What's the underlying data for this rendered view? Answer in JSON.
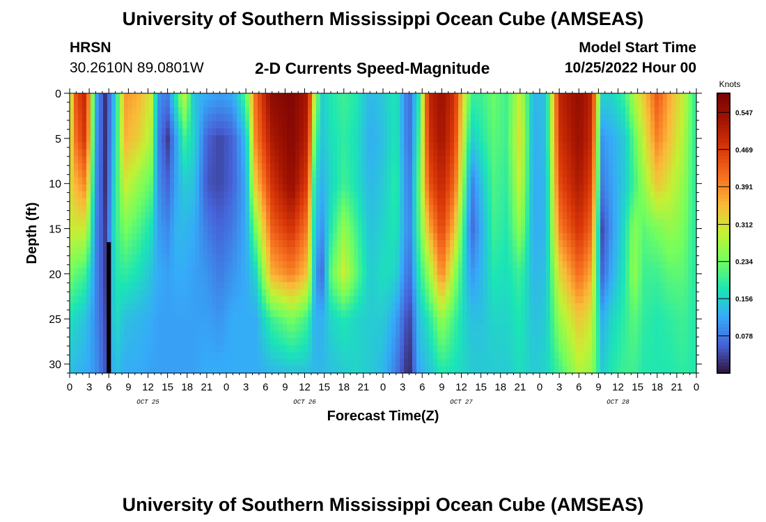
{
  "header": {
    "title": "University of Southern Mississippi Ocean Cube (AMSEAS)",
    "station": "HRSN",
    "coords": "30.2610N  89.0801W",
    "product": "2-D Currents Speed-Magnitude",
    "model_label": "Model Start Time",
    "model_time": "10/25/2022 Hour 00"
  },
  "footer_title": "University of Southern Mississippi Ocean Cube (AMSEAS)",
  "chart_data": {
    "type": "heatmap",
    "title": "2-D Currents Speed-Magnitude",
    "xlabel": "Forecast Time(Z)",
    "ylabel": "Depth (ft)",
    "x_hours_range": [
      0,
      96
    ],
    "x_tick_labels": [
      "0",
      "3",
      "6",
      "9",
      "12",
      "15",
      "18",
      "21",
      "0",
      "3",
      "6",
      "9",
      "12",
      "15",
      "18",
      "21",
      "0",
      "3",
      "6",
      "9",
      "12",
      "15",
      "18",
      "21",
      "0",
      "3",
      "6",
      "9",
      "12",
      "15",
      "18",
      "21",
      "0"
    ],
    "date_labels": [
      {
        "label": "OCT 25",
        "hour": 12
      },
      {
        "label": "OCT 26",
        "hour": 36
      },
      {
        "label": "OCT 27",
        "hour": 60
      },
      {
        "label": "OCT 28",
        "hour": 84
      }
    ],
    "y_range_ft": [
      0,
      31
    ],
    "y_ticks": [
      0,
      5,
      10,
      15,
      20,
      25,
      30
    ],
    "colorbar": {
      "unit": "Knots",
      "range": [
        0,
        0.587
      ],
      "ticks": [
        "0.547",
        "0.469",
        "0.391",
        "0.312",
        "0.234",
        "0.156",
        "0.078"
      ],
      "tick_values": [
        0.547,
        0.469,
        0.391,
        0.312,
        0.234,
        0.156,
        0.078
      ]
    },
    "profile_anchor_depths_ft": [
      0,
      5,
      10,
      15,
      20,
      25,
      31
    ],
    "time_profiles": [
      {
        "hour": 0,
        "speeds": [
          0.26,
          0.29,
          0.31,
          0.3,
          0.24,
          0.17,
          0.14
        ]
      },
      {
        "hour": 1,
        "speeds": [
          0.45,
          0.42,
          0.36,
          0.3,
          0.22,
          0.16,
          0.13
        ]
      },
      {
        "hour": 2.5,
        "speeds": [
          0.5,
          0.48,
          0.4,
          0.3,
          0.2,
          0.14,
          0.12
        ]
      },
      {
        "hour": 4,
        "speeds": [
          0.12,
          0.11,
          0.1,
          0.09,
          0.09,
          0.09,
          0.1
        ]
      },
      {
        "hour": 5.5,
        "speeds": [
          0.02,
          0.02,
          0.02,
          0.03,
          0.03,
          0.04,
          0.05
        ]
      },
      {
        "hour": 7,
        "speeds": [
          0.15,
          0.16,
          0.18,
          0.19,
          0.18,
          0.17,
          0.14
        ]
      },
      {
        "hour": 8.5,
        "speeds": [
          0.38,
          0.36,
          0.3,
          0.24,
          0.19,
          0.14,
          0.12
        ]
      },
      {
        "hour": 10.5,
        "speeds": [
          0.36,
          0.33,
          0.26,
          0.21,
          0.17,
          0.13,
          0.12
        ]
      },
      {
        "hour": 12.5,
        "speeds": [
          0.3,
          0.27,
          0.22,
          0.17,
          0.14,
          0.12,
          0.11
        ]
      },
      {
        "hour": 13.5,
        "speeds": [
          0.1,
          0.09,
          0.1,
          0.11,
          0.12,
          0.11,
          0.11
        ]
      },
      {
        "hour": 15,
        "speeds": [
          0.08,
          0.03,
          0.06,
          0.09,
          0.11,
          0.11,
          0.11
        ]
      },
      {
        "hour": 16.5,
        "speeds": [
          0.2,
          0.12,
          0.12,
          0.13,
          0.12,
          0.11,
          0.11
        ]
      },
      {
        "hour": 17.5,
        "speeds": [
          0.3,
          0.2,
          0.15,
          0.13,
          0.12,
          0.11,
          0.11
        ]
      },
      {
        "hour": 19,
        "speeds": [
          0.14,
          0.16,
          0.14,
          0.12,
          0.11,
          0.11,
          0.11
        ]
      },
      {
        "hour": 21,
        "speeds": [
          0.12,
          0.06,
          0.05,
          0.08,
          0.1,
          0.11,
          0.12
        ]
      },
      {
        "hour": 23,
        "speeds": [
          0.11,
          0.04,
          0.04,
          0.06,
          0.08,
          0.1,
          0.12
        ]
      },
      {
        "hour": 25,
        "speeds": [
          0.12,
          0.06,
          0.06,
          0.08,
          0.1,
          0.12,
          0.12
        ]
      },
      {
        "hour": 27,
        "speeds": [
          0.22,
          0.14,
          0.12,
          0.12,
          0.12,
          0.12,
          0.12
        ]
      },
      {
        "hour": 28.5,
        "speeds": [
          0.42,
          0.4,
          0.34,
          0.24,
          0.16,
          0.12,
          0.12
        ]
      },
      {
        "hour": 31,
        "speeds": [
          0.56,
          0.52,
          0.48,
          0.43,
          0.36,
          0.2,
          0.13
        ]
      },
      {
        "hour": 34,
        "speeds": [
          0.58,
          0.57,
          0.55,
          0.48,
          0.4,
          0.24,
          0.14
        ]
      },
      {
        "hour": 36.5,
        "speeds": [
          0.52,
          0.5,
          0.46,
          0.4,
          0.34,
          0.2,
          0.14
        ]
      },
      {
        "hour": 37.5,
        "speeds": [
          0.3,
          0.24,
          0.18,
          0.16,
          0.14,
          0.13,
          0.13
        ]
      },
      {
        "hour": 38.5,
        "speeds": [
          0.15,
          0.14,
          0.12,
          0.09,
          0.05,
          0.12,
          0.13
        ]
      },
      {
        "hour": 40,
        "speeds": [
          0.18,
          0.17,
          0.16,
          0.18,
          0.22,
          0.16,
          0.14
        ]
      },
      {
        "hour": 42,
        "speeds": [
          0.2,
          0.19,
          0.2,
          0.26,
          0.3,
          0.18,
          0.15
        ]
      },
      {
        "hour": 44,
        "speeds": [
          0.18,
          0.17,
          0.17,
          0.2,
          0.22,
          0.16,
          0.16
        ]
      },
      {
        "hour": 46,
        "speeds": [
          0.13,
          0.12,
          0.13,
          0.14,
          0.15,
          0.15,
          0.15
        ]
      },
      {
        "hour": 48,
        "speeds": [
          0.15,
          0.14,
          0.15,
          0.16,
          0.17,
          0.15,
          0.13
        ]
      },
      {
        "hour": 50,
        "speeds": [
          0.18,
          0.18,
          0.19,
          0.18,
          0.16,
          0.11,
          0.08
        ]
      },
      {
        "hour": 52,
        "speeds": [
          0.06,
          0.06,
          0.07,
          0.08,
          0.06,
          0.03,
          0.01
        ]
      },
      {
        "hour": 53.5,
        "speeds": [
          0.18,
          0.2,
          0.22,
          0.21,
          0.18,
          0.14,
          0.12
        ]
      },
      {
        "hour": 55,
        "speeds": [
          0.5,
          0.48,
          0.44,
          0.36,
          0.26,
          0.18,
          0.14
        ]
      },
      {
        "hour": 57,
        "speeds": [
          0.54,
          0.53,
          0.5,
          0.46,
          0.4,
          0.26,
          0.18
        ]
      },
      {
        "hour": 59,
        "speeds": [
          0.48,
          0.46,
          0.42,
          0.35,
          0.26,
          0.2,
          0.17
        ]
      },
      {
        "hour": 60.5,
        "speeds": [
          0.3,
          0.27,
          0.22,
          0.18,
          0.16,
          0.16,
          0.16
        ]
      },
      {
        "hour": 61.5,
        "speeds": [
          0.2,
          0.15,
          0.08,
          0.06,
          0.1,
          0.14,
          0.15
        ]
      },
      {
        "hour": 63,
        "speeds": [
          0.2,
          0.18,
          0.14,
          0.12,
          0.13,
          0.14,
          0.15
        ]
      },
      {
        "hour": 65,
        "speeds": [
          0.23,
          0.22,
          0.21,
          0.2,
          0.18,
          0.16,
          0.15
        ]
      },
      {
        "hour": 67,
        "speeds": [
          0.2,
          0.2,
          0.19,
          0.18,
          0.17,
          0.16,
          0.15
        ]
      },
      {
        "hour": 69,
        "speeds": [
          0.3,
          0.32,
          0.3,
          0.26,
          0.2,
          0.18,
          0.17
        ]
      },
      {
        "hour": 71,
        "speeds": [
          0.13,
          0.12,
          0.12,
          0.12,
          0.13,
          0.14,
          0.15
        ]
      },
      {
        "hour": 73,
        "speeds": [
          0.14,
          0.14,
          0.13,
          0.13,
          0.14,
          0.15,
          0.16
        ]
      },
      {
        "hour": 75,
        "speeds": [
          0.5,
          0.48,
          0.45,
          0.4,
          0.32,
          0.26,
          0.2
        ]
      },
      {
        "hour": 78,
        "speeds": [
          0.55,
          0.54,
          0.52,
          0.48,
          0.42,
          0.34,
          0.28
        ]
      },
      {
        "hour": 80,
        "speeds": [
          0.5,
          0.49,
          0.46,
          0.42,
          0.36,
          0.3,
          0.26
        ]
      },
      {
        "hour": 81.5,
        "speeds": [
          0.16,
          0.1,
          0.08,
          0.04,
          0.06,
          0.12,
          0.15
        ]
      },
      {
        "hour": 83,
        "speeds": [
          0.16,
          0.12,
          0.11,
          0.1,
          0.12,
          0.16,
          0.18
        ]
      },
      {
        "hour": 85,
        "speeds": [
          0.2,
          0.15,
          0.15,
          0.17,
          0.18,
          0.19,
          0.2
        ]
      },
      {
        "hour": 86.5,
        "speeds": [
          0.28,
          0.22,
          0.2,
          0.25,
          0.26,
          0.22,
          0.2
        ]
      },
      {
        "hour": 88,
        "speeds": [
          0.34,
          0.3,
          0.26,
          0.22,
          0.2,
          0.19,
          0.18
        ]
      },
      {
        "hour": 90,
        "speeds": [
          0.44,
          0.4,
          0.34,
          0.24,
          0.2,
          0.18,
          0.18
        ]
      },
      {
        "hour": 92,
        "speeds": [
          0.36,
          0.34,
          0.3,
          0.26,
          0.22,
          0.19,
          0.18
        ]
      },
      {
        "hour": 94,
        "speeds": [
          0.3,
          0.28,
          0.26,
          0.24,
          0.22,
          0.2,
          0.19
        ]
      },
      {
        "hour": 96,
        "speeds": [
          0.18,
          0.18,
          0.18,
          0.18,
          0.18,
          0.18,
          0.18
        ]
      }
    ],
    "bottom_marker": {
      "hour": 6,
      "depth_from_ft": 16.5,
      "depth_to_ft": 31,
      "color": "#000000"
    }
  }
}
